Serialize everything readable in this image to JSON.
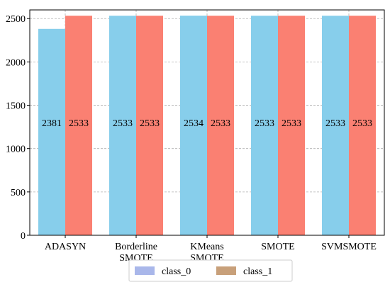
{
  "chart_data": {
    "type": "bar",
    "categories": [
      [
        "ADASYN"
      ],
      [
        "Borderline",
        "SMOTE"
      ],
      [
        "KMeans",
        "SMOTE"
      ],
      [
        "SMOTE"
      ],
      [
        "SVMSMOTE"
      ]
    ],
    "series": [
      {
        "name": "class_0",
        "values": [
          2381,
          2533,
          2534,
          2533,
          2533
        ],
        "color": "#87CEEB",
        "legend_color": "#A9B7EA"
      },
      {
        "name": "class_1",
        "values": [
          2533,
          2533,
          2533,
          2533,
          2533
        ],
        "color": "#FA8072",
        "legend_color": "#C8A07A"
      }
    ],
    "ylim": [
      0,
      2600
    ],
    "yticks": [
      0,
      500,
      1000,
      1500,
      2000,
      2500
    ],
    "grid": true,
    "legend_position": "bottom-center"
  }
}
